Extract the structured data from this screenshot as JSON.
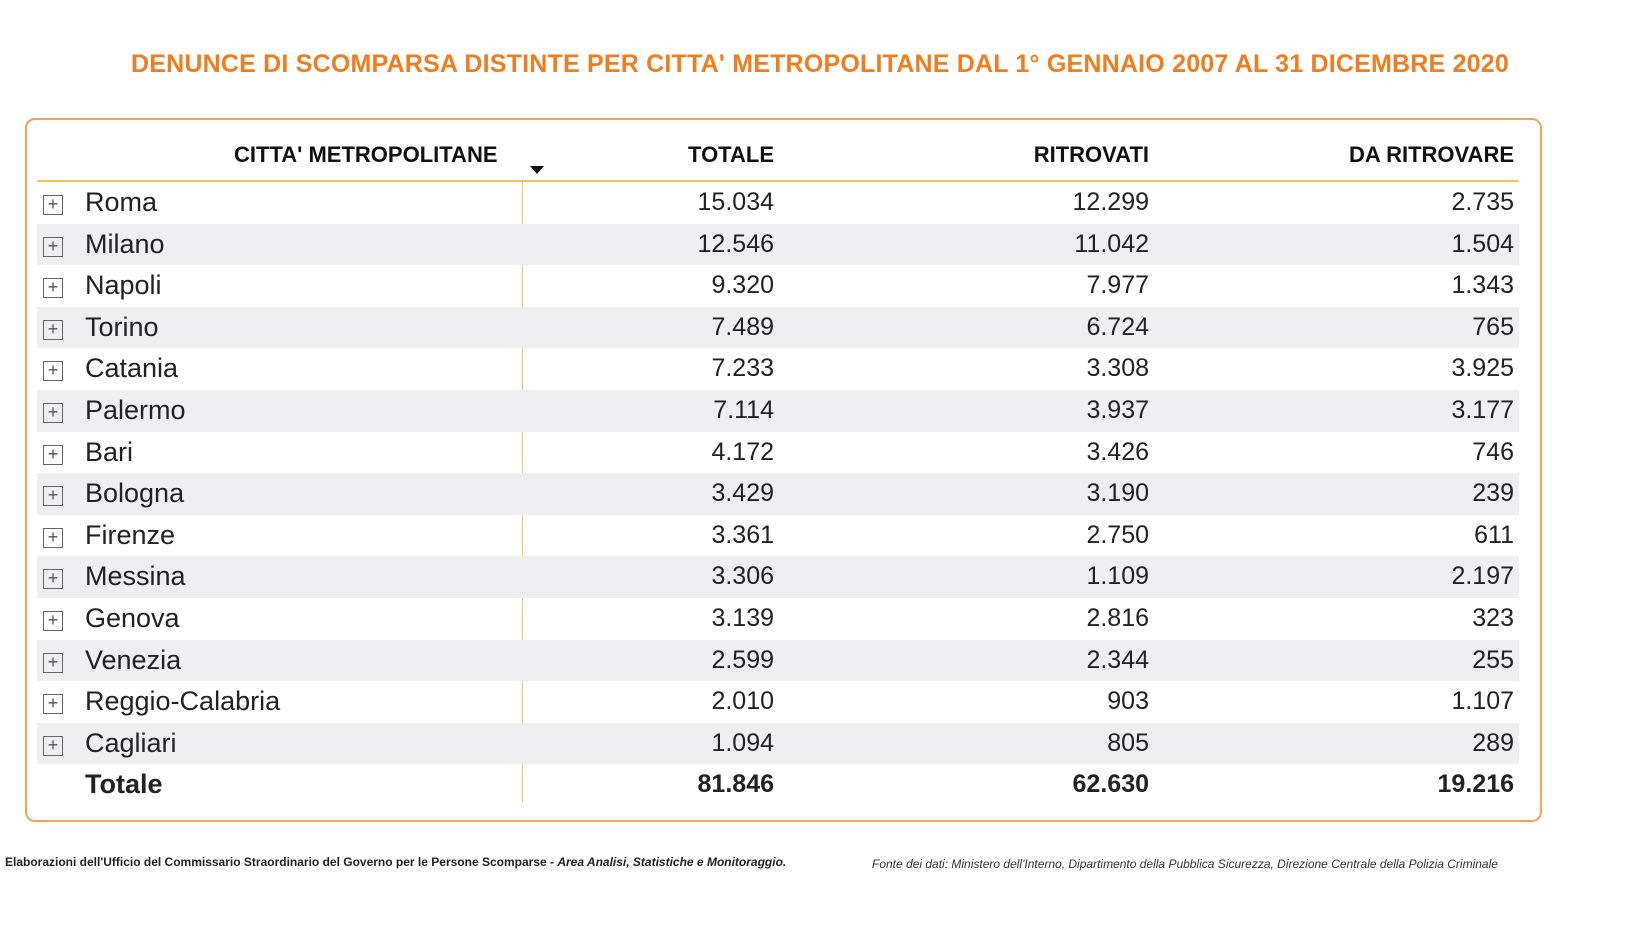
{
  "title": "DENUNCE DI SCOMPARSA  DISTINTE PER CITTA' METROPOLITANE  DAL 1° GENNAIO 2007 AL 31 DICEMBRE 2020",
  "columns": [
    "CITTA' METROPOLITANE",
    "TOTALE",
    "RITROVATI",
    "DA RITROVARE"
  ],
  "rows": [
    {
      "city": "Roma",
      "totale": "15.034",
      "ritrovati": "12.299",
      "da_ritrovare": "2.735"
    },
    {
      "city": "Milano",
      "totale": "12.546",
      "ritrovati": "11.042",
      "da_ritrovare": "1.504"
    },
    {
      "city": "Napoli",
      "totale": "9.320",
      "ritrovati": "7.977",
      "da_ritrovare": "1.343"
    },
    {
      "city": "Torino",
      "totale": "7.489",
      "ritrovati": "6.724",
      "da_ritrovare": "765"
    },
    {
      "city": "Catania",
      "totale": "7.233",
      "ritrovati": "3.308",
      "da_ritrovare": "3.925"
    },
    {
      "city": "Palermo",
      "totale": "7.114",
      "ritrovati": "3.937",
      "da_ritrovare": "3.177"
    },
    {
      "city": "Bari",
      "totale": "4.172",
      "ritrovati": "3.426",
      "da_ritrovare": "746"
    },
    {
      "city": "Bologna",
      "totale": "3.429",
      "ritrovati": "3.190",
      "da_ritrovare": "239"
    },
    {
      "city": "Firenze",
      "totale": "3.361",
      "ritrovati": "2.750",
      "da_ritrovare": "611"
    },
    {
      "city": "Messina",
      "totale": "3.306",
      "ritrovati": "1.109",
      "da_ritrovare": "2.197"
    },
    {
      "city": "Genova",
      "totale": "3.139",
      "ritrovati": "2.816",
      "da_ritrovare": "323"
    },
    {
      "city": "Venezia",
      "totale": "2.599",
      "ritrovati": "2.344",
      "da_ritrovare": "255"
    },
    {
      "city": "Reggio-Calabria",
      "totale": "2.010",
      "ritrovati": "903",
      "da_ritrovare": "1.107"
    },
    {
      "city": "Cagliari",
      "totale": "1.094",
      "ritrovati": "805",
      "da_ritrovare": "289"
    }
  ],
  "total": {
    "label": "Totale",
    "totale": "81.846",
    "ritrovati": "62.630",
    "da_ritrovare": "19.216"
  },
  "expand_symbol": "+",
  "footer": {
    "left_bold": "Elaborazioni dell'Ufficio del Commissario Straordinario  del Governo per le Persone Scomparse - ",
    "left_italic": "Area  Analisi, Statistiche  e Monitoraggio.",
    "right": "Fonte dei dati: Ministero dell'Interno, Dipartimento della Pubblica Sicurezza, Direzione Centrale della Polizia Criminale"
  }
}
